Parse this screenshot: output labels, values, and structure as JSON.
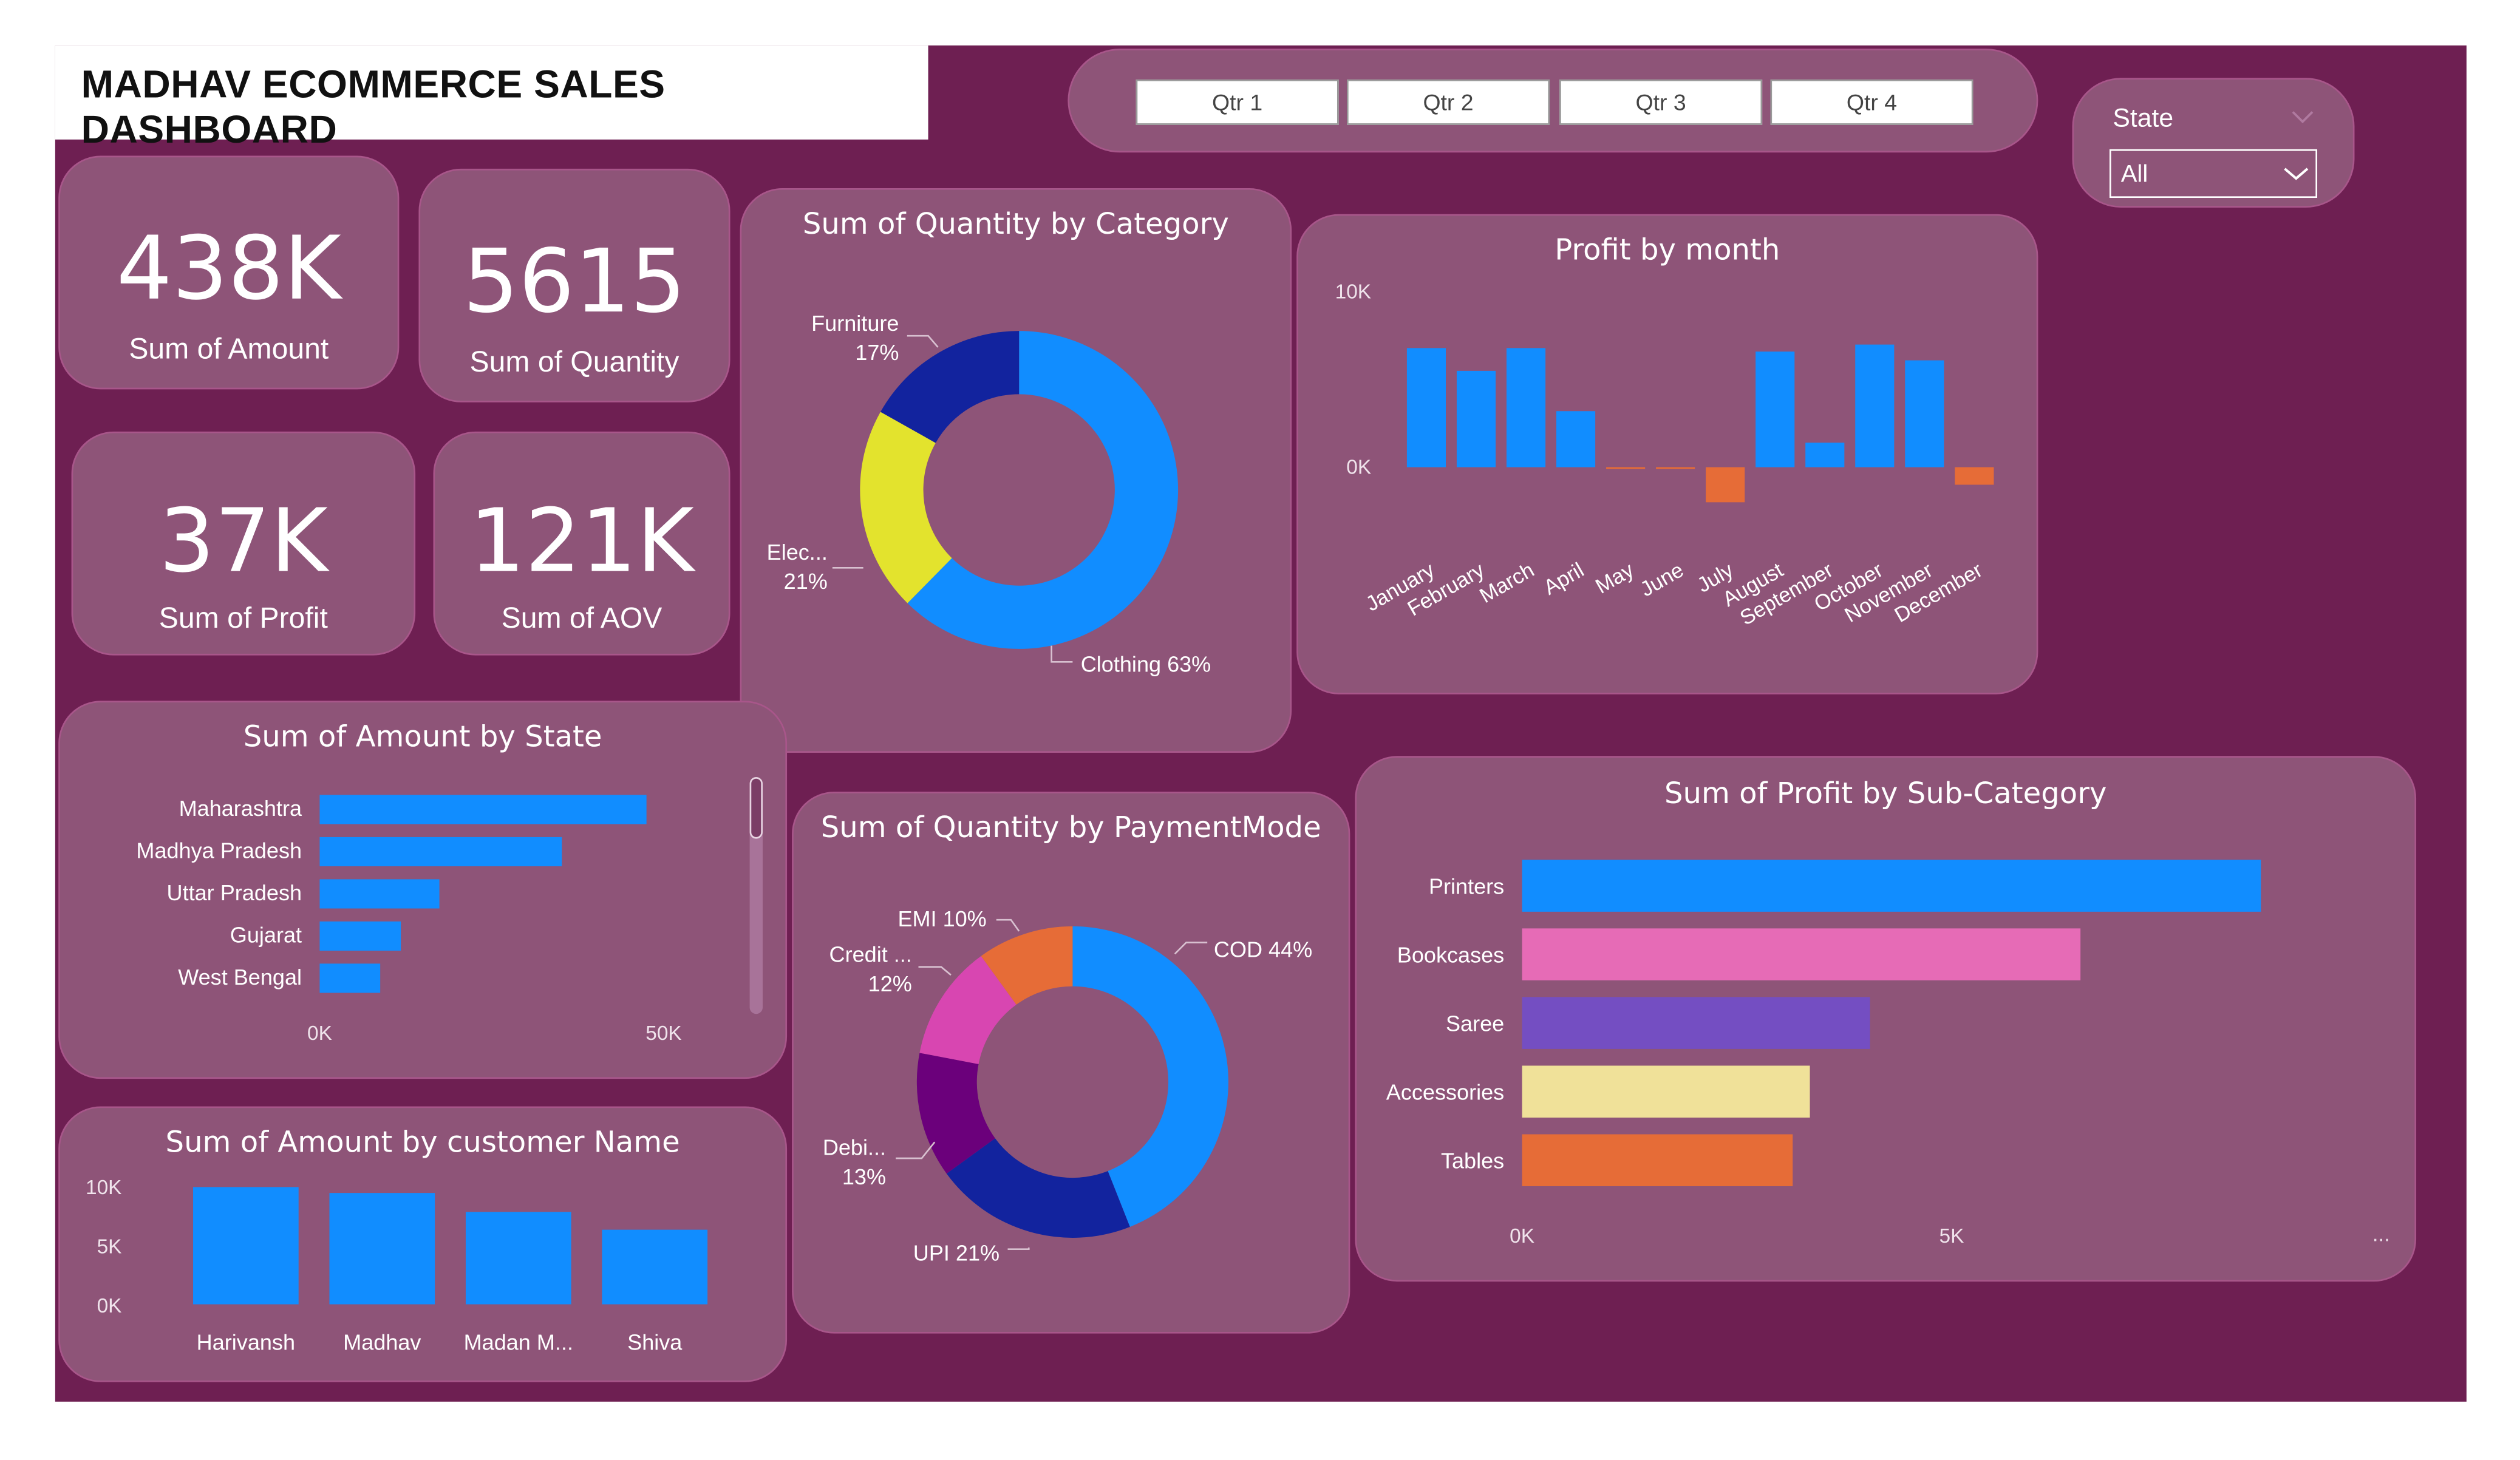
{
  "title": "MADHAV ECOMMERCE SALES DASHBOARD",
  "kpis": [
    {
      "value": "438K",
      "label": "Sum of Amount"
    },
    {
      "value": "5615",
      "label": "Sum of Quantity"
    },
    {
      "value": "37K",
      "label": "Sum of Profit"
    },
    {
      "value": "121K",
      "label": "Sum of AOV"
    }
  ],
  "quarters": [
    "Qtr 1",
    "Qtr 2",
    "Qtr 3",
    "Qtr 4"
  ],
  "state_filter": {
    "label": "State",
    "selected": "All"
  },
  "colors": {
    "primary": "#118dff",
    "navy": "#12239e",
    "yellow": "#e3e32d",
    "orange": "#e66c37",
    "magenta": "#d846b1",
    "purple": "#6b007b",
    "pink": "#e66bb6",
    "violet": "#744ec2",
    "sand": "#f0e199"
  },
  "more_indicator": "...",
  "chart_data": [
    {
      "id": "category",
      "type": "pie",
      "title": "Sum of Quantity by Category",
      "labels": [
        "Clothing",
        "Electronics",
        "Furniture"
      ],
      "values": [
        63,
        21,
        17
      ],
      "label_text": [
        [
          "Clothing 63%"
        ],
        [
          "Elec...",
          "21%"
        ],
        [
          "Furniture",
          "17%"
        ]
      ]
    },
    {
      "id": "profit_month",
      "type": "bar",
      "title": "Profit by month",
      "categories": [
        "January",
        "February",
        "March",
        "April",
        "May",
        "June",
        "July",
        "August",
        "September",
        "October",
        "November",
        "December"
      ],
      "values": [
        6800,
        5500,
        6800,
        3200,
        -100,
        -100,
        -2000,
        6600,
        1400,
        7000,
        6100,
        -1000
      ],
      "ylim": [
        -3000,
        10000
      ],
      "yticks": [
        0,
        10000
      ],
      "ytick_labels": [
        "0K",
        "10K"
      ]
    },
    {
      "id": "amount_state",
      "type": "bar",
      "orientation": "horizontal",
      "title": "Sum of Amount by State",
      "categories": [
        "Maharashtra",
        "Madhya Pradesh",
        "Uttar Pradesh",
        "Gujarat",
        "West Bengal"
      ],
      "values": [
        47500,
        35200,
        17400,
        11800,
        8800
      ],
      "xlim": [
        0,
        50000
      ],
      "xticks": [
        0,
        50000
      ],
      "xtick_labels": [
        "0K",
        "50K"
      ]
    },
    {
      "id": "amount_customer",
      "type": "bar",
      "title": "Sum of Amount by customer Name",
      "categories": [
        "Harivansh",
        "Madhav",
        "Madan M...",
        "Shiva"
      ],
      "values": [
        9900,
        9400,
        7800,
        6300
      ],
      "ylim": [
        0,
        10000
      ],
      "yticks": [
        0,
        5000,
        10000
      ],
      "ytick_labels": [
        "0K",
        "5K",
        "10K"
      ]
    },
    {
      "id": "payment",
      "type": "pie",
      "title": "Sum of Quantity by PaymentMode",
      "labels": [
        "COD",
        "UPI",
        "Debit Card",
        "Credit Card",
        "EMI"
      ],
      "values": [
        44,
        21,
        13,
        12,
        10
      ],
      "label_text": [
        [
          "COD 44%"
        ],
        [
          "UPI 21%"
        ],
        [
          "Debi...",
          "13%"
        ],
        [
          "Credit ...",
          "12%"
        ],
        [
          "EMI 10%"
        ]
      ]
    },
    {
      "id": "profit_subcat",
      "type": "bar",
      "orientation": "horizontal",
      "title": "Sum of Profit by Sub-Category",
      "categories": [
        "Printers",
        "Bookcases",
        "Saree",
        "Accessories",
        "Tables"
      ],
      "values": [
        8600,
        6500,
        4050,
        3350,
        3150
      ],
      "xlim": [
        0,
        10000
      ],
      "xticks": [
        0,
        5000
      ],
      "xtick_labels": [
        "0K",
        "5K"
      ]
    }
  ]
}
